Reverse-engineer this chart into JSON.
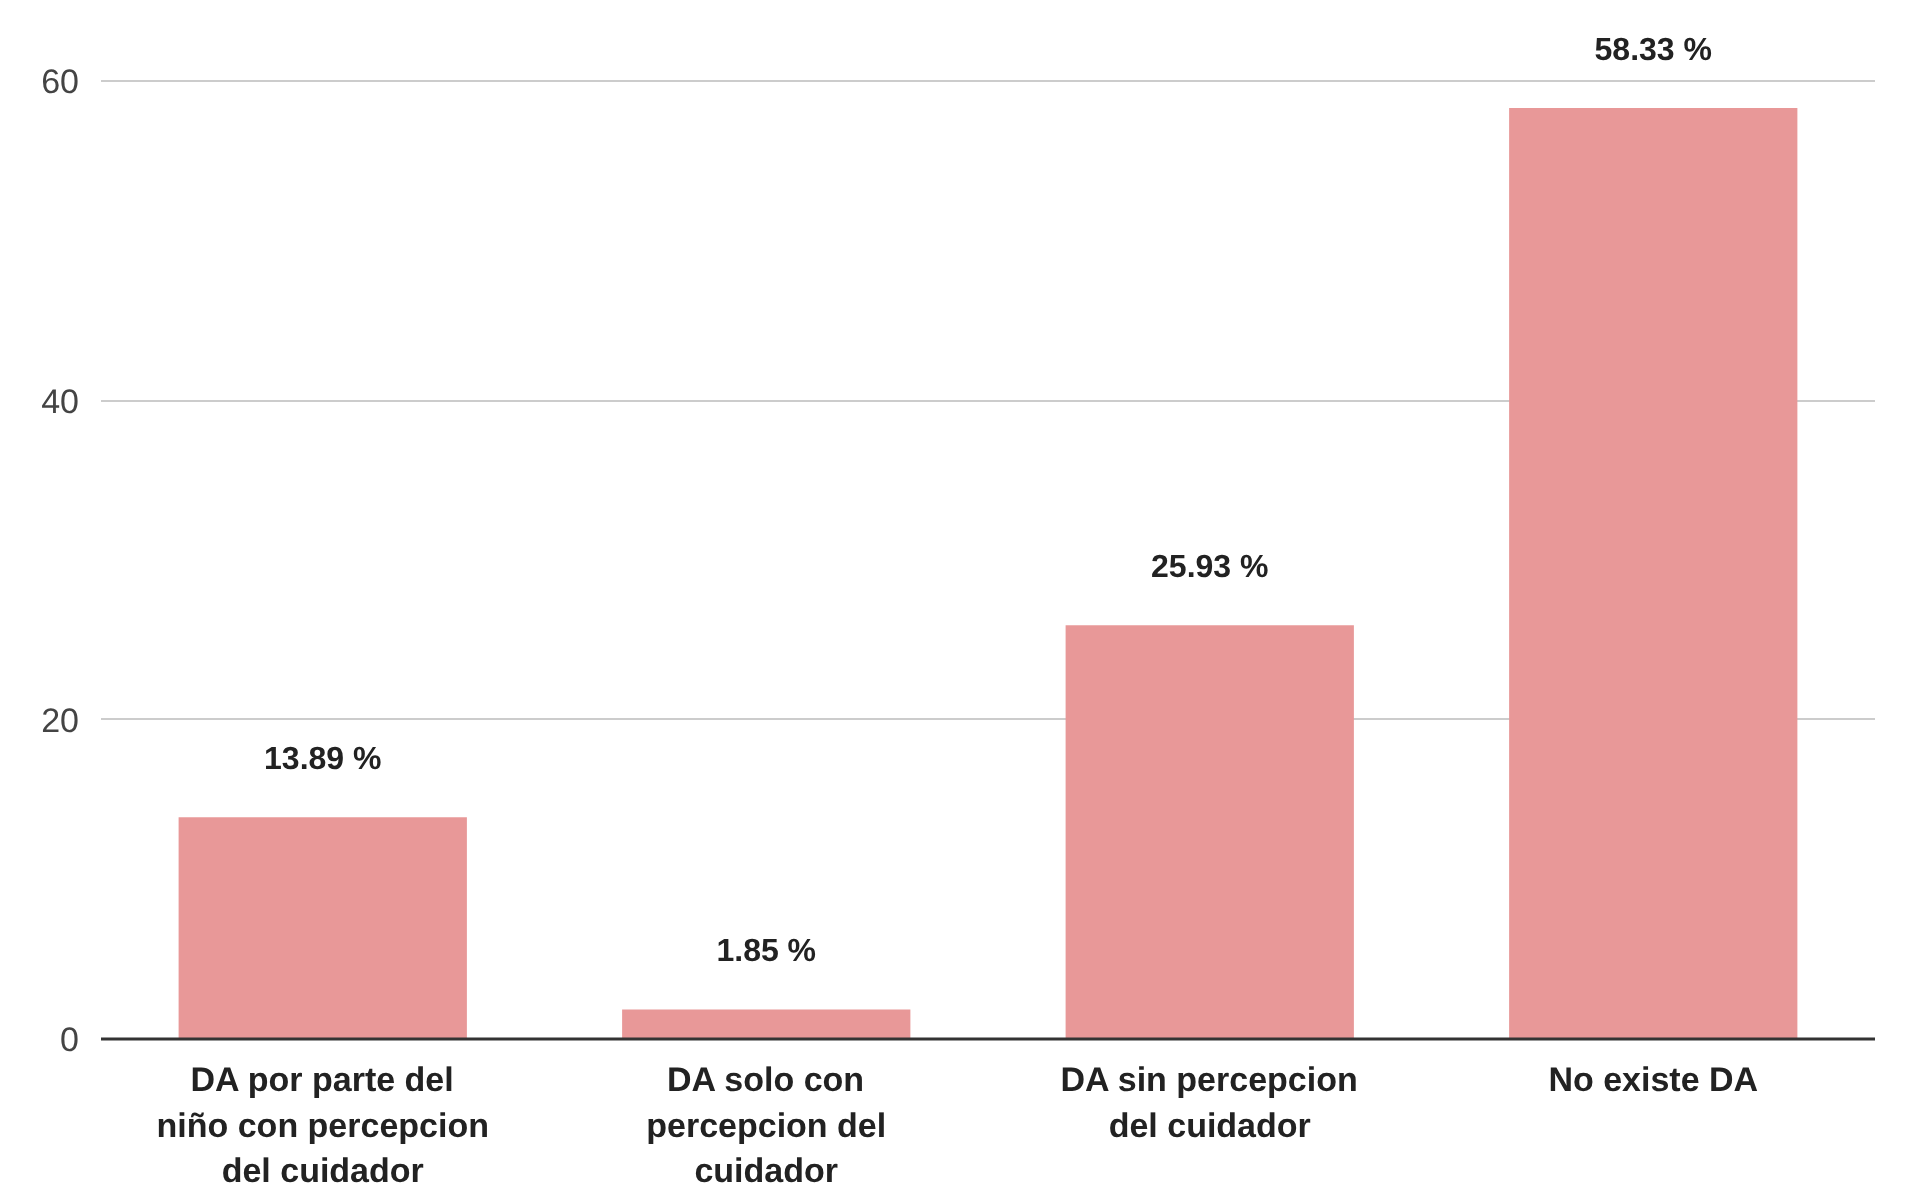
{
  "chart_data": {
    "type": "bar",
    "categories": [
      "DA por parte del niño con percepcion del cuidador",
      "DA solo con percepcion del cuidador",
      "DA sin percepcion del cuidador",
      "No existe DA"
    ],
    "values": [
      13.89,
      1.85,
      25.93,
      58.33
    ],
    "value_labels": [
      "13.89 %",
      "1.85 %",
      "25.93 %",
      "58.33 %"
    ],
    "color": "#e89898",
    "ylim": [
      0,
      60
    ],
    "yticks": [
      0,
      20,
      40,
      60
    ],
    "grid": "y"
  }
}
